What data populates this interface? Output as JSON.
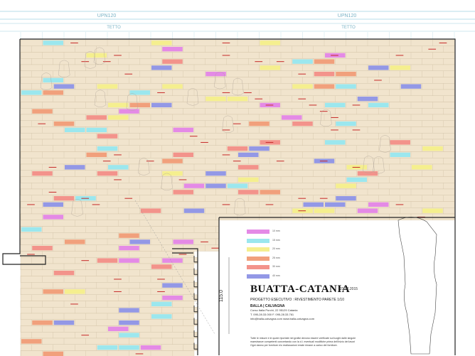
{
  "header": {
    "beam_label_left": "UPN120",
    "beam_label_right": "UPN120",
    "roof_label_left": "TETTO",
    "roof_label_right": "TETTO"
  },
  "title_block": {
    "title": "BUATTA-CATANIA",
    "date": "23.02.2015",
    "subtitle": "PROGETTO ESECUTIVO : RIVESTIMENTO PARETE  1/10",
    "firm": "BALLA | CALVAGNA",
    "address_lines": [
      "Corso Italia Purchi, 22  95129 Catania",
      "T. 095-28.33.000  F. 095-28.33.761",
      "info@balla-calvagna.com  www.balla-calvagna.com"
    ]
  },
  "notes": [
    "Tutte le misure e le quote riportate nei grafici devono essere verificate sui luoghi dalle singole",
    "maestranze competenti concertando con la d.l. eventuali modifiche prima dell'inizio dei lavori",
    "Ogni danno per forniture e/o realizzazioni errate rimane a carico del fornitore."
  ],
  "dimension_label": "115.0",
  "legend": [
    {
      "color": "#e48ae6",
      "label": "10 mm"
    },
    {
      "color": "#9be7ee",
      "label": "15 mm"
    },
    {
      "color": "#f5ef8e",
      "label": "20 mm"
    },
    {
      "color": "#f1a07c",
      "label": "25 mm"
    },
    {
      "color": "#f3938b",
      "label": "30 mm"
    },
    {
      "color": "#9398e6",
      "label": "40 mm"
    }
  ],
  "colors": {
    "plank": "#f1e4cd",
    "plank_line": "#c9b99c",
    "outline": "#222222",
    "red_text": "#c62828",
    "beam_line": "#9fd0e0"
  }
}
